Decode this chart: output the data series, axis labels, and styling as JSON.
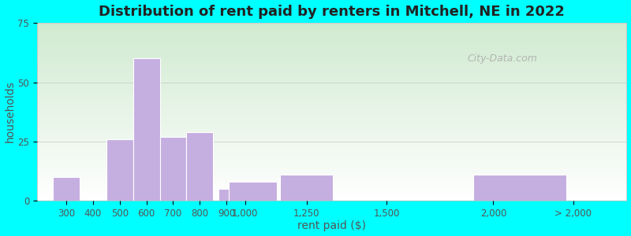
{
  "title": "Distribution of rent paid by renters in Mitchell, NE in 2022",
  "xlabel": "rent paid ($)",
  "ylabel": "households",
  "bar_color": "#c5aee0",
  "bar_edgecolor": "#ffffff",
  "outer_background": "#00ffff",
  "ylim": [
    0,
    75
  ],
  "yticks": [
    0,
    25,
    50,
    75
  ],
  "tick_labels": [
    "300",
    "400",
    "500",
    "600",
    "700",
    "800",
    "9001,000",
    "1,250",
    "1,500",
    "2,000",
    "> 2,000"
  ],
  "values": [
    10,
    26,
    60,
    27,
    29,
    5,
    8,
    11,
    0,
    11
  ],
  "title_fontsize": 13,
  "axis_fontsize": 10,
  "tick_fontsize": 8.5,
  "watermark": "City-Data.com"
}
